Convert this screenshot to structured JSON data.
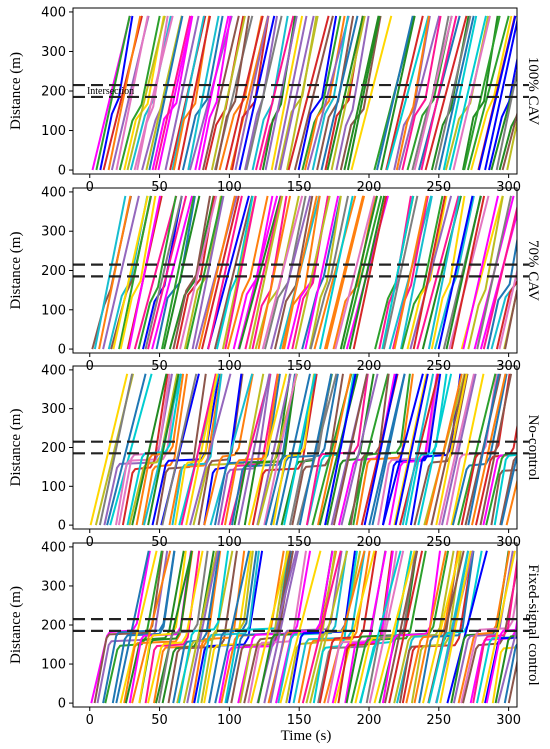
{
  "chart_data": {
    "type": "line",
    "xlabel": "Time (s)",
    "ylabel": "Distance (m)",
    "xlim": [
      -12,
      306
    ],
    "ylim": [
      -10,
      410
    ],
    "xticks": [
      0,
      50,
      100,
      150,
      200,
      250,
      300
    ],
    "yticks": [
      0,
      100,
      200,
      300,
      400
    ],
    "grid": false,
    "legend": "none",
    "intersection_band_m": [
      185,
      215
    ],
    "vehicles_per_panel": 110,
    "trajectory_end_m": 390,
    "palette": [
      "#1f77b4",
      "#ff7f0e",
      "#2ca02c",
      "#d62728",
      "#9467bd",
      "#8c564b",
      "#e377c2",
      "#7f7f7f",
      "#bcbd22",
      "#17becf",
      "#ff00ff",
      "#0000ff",
      "#ffd700",
      "#00ced1",
      "#ff1493",
      "#228b22"
    ],
    "panels": [
      {
        "name": "100% CAV",
        "side_label": "100% CAV",
        "annotation": "Intersection",
        "mode": "cav",
        "stop_fraction": 0.0
      },
      {
        "name": "70% CAV",
        "side_label": "70% CAV",
        "annotation": "",
        "mode": "cav",
        "stop_fraction": 0.0
      },
      {
        "name": "No-control",
        "side_label": "No-control",
        "annotation": "",
        "mode": "queue",
        "stop_fraction": 0.55
      },
      {
        "name": "Fixed-signal control",
        "side_label": "Fixed-signal control",
        "annotation": "",
        "mode": "signal",
        "stop_fraction": 0.7
      }
    ]
  }
}
